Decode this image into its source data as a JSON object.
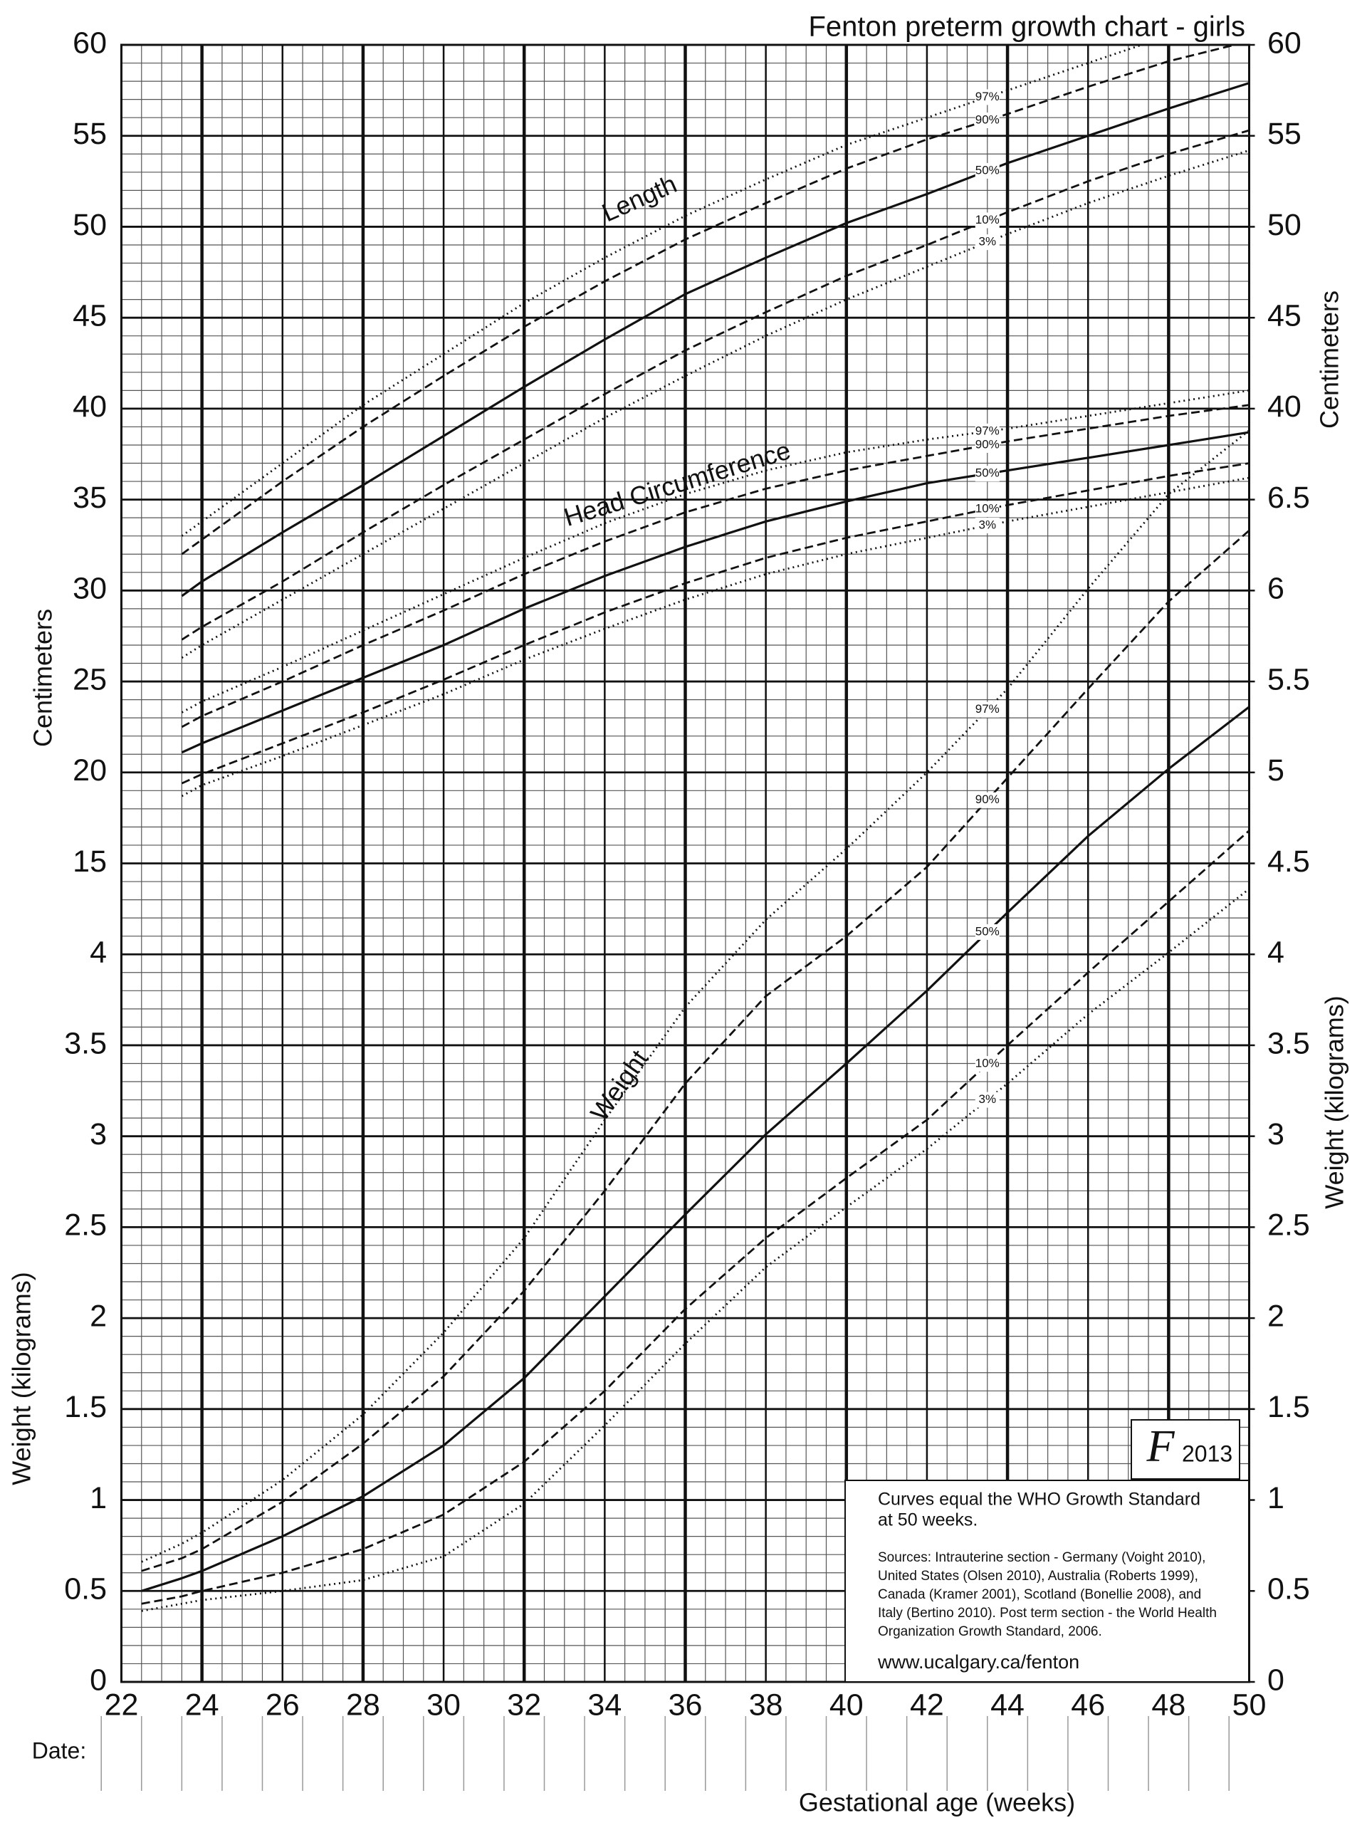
{
  "chart_data": {
    "type": "line",
    "title": "Fenton preterm growth chart - girls",
    "xlabel": "Gestational age (weeks)",
    "date_label": "Date:",
    "ylabel_cm": "Centimeters",
    "ylabel_kg": "Weight (kilograms)",
    "color": "#111111",
    "grid": true,
    "xlim": [
      22,
      50
    ],
    "xticks": [
      22,
      24,
      26,
      28,
      30,
      32,
      34,
      36,
      38,
      40,
      42,
      44,
      46,
      48,
      50
    ],
    "ylim": [
      -30,
      60
    ],
    "yticks": [
      15,
      20,
      25,
      30,
      35,
      40,
      45,
      50,
      55,
      60
    ],
    "yticks_right": [
      40,
      45,
      50,
      55,
      60
    ],
    "y2lim": [
      0,
      9
    ],
    "y2ticks_left": [
      0,
      0.5,
      1,
      1.5,
      2,
      2.5,
      3,
      3.5,
      4
    ],
    "y2ticks": [
      0,
      0.5,
      1,
      1.5,
      2,
      2.5,
      3,
      3.5,
      4,
      4.5,
      5,
      5.5,
      6,
      6.5
    ],
    "x": [
      22.5,
      23.5,
      24,
      26,
      28,
      30,
      32,
      34,
      36,
      38,
      40,
      42,
      44,
      46,
      48,
      50
    ],
    "groups": [
      {
        "label": "Length",
        "axis": "y",
        "series": [
          {
            "name": "97%",
            "style": "dotted",
            "values": [
              null,
              33.0,
              33.8,
              37.0,
              40.2,
              43.0,
              45.8,
              48.3,
              50.6,
              52.6,
              54.5,
              56.0,
              57.5,
              59.0,
              60.5,
              61.8
            ]
          },
          {
            "name": "90%",
            "style": "dashed",
            "values": [
              null,
              32.0,
              32.8,
              36.0,
              39.0,
              41.8,
              44.5,
              47.0,
              49.3,
              51.3,
              53.2,
              54.8,
              56.2,
              57.7,
              59.1,
              60.2
            ]
          },
          {
            "name": "50%",
            "style": "solid",
            "values": [
              null,
              29.7,
              30.5,
              33.2,
              35.8,
              38.5,
              41.2,
              43.8,
              46.3,
              48.3,
              50.2,
              51.8,
              53.5,
              55.0,
              56.5,
              57.9
            ]
          },
          {
            "name": "10%",
            "style": "dashed",
            "values": [
              null,
              27.3,
              28.0,
              30.5,
              33.2,
              35.8,
              38.3,
              40.8,
              43.2,
              45.3,
              47.3,
              49.0,
              50.8,
              52.5,
              54.0,
              55.3
            ]
          },
          {
            "name": "3%",
            "style": "dotted",
            "values": [
              null,
              26.3,
              27.0,
              29.5,
              32.0,
              34.5,
              37.0,
              39.5,
              41.8,
              44.0,
              46.0,
              47.8,
              49.6,
              51.3,
              52.8,
              54.2
            ]
          }
        ]
      },
      {
        "label": "Head Circumference",
        "axis": "y",
        "series": [
          {
            "name": "97%",
            "style": "dotted",
            "values": [
              null,
              23.3,
              23.9,
              25.8,
              27.8,
              29.8,
              31.8,
              33.7,
              35.3,
              36.6,
              37.6,
              38.3,
              38.9,
              39.6,
              40.3,
              41.0
            ]
          },
          {
            "name": "90%",
            "style": "dashed",
            "values": [
              null,
              22.5,
              23.1,
              25.0,
              27.0,
              28.9,
              30.9,
              32.7,
              34.3,
              35.6,
              36.6,
              37.4,
              38.2,
              38.9,
              39.6,
              40.2
            ]
          },
          {
            "name": "50%",
            "style": "solid",
            "values": [
              null,
              21.1,
              21.6,
              23.4,
              25.2,
              27.0,
              29.0,
              30.8,
              32.4,
              33.8,
              34.9,
              35.9,
              36.6,
              37.3,
              38.0,
              38.7
            ]
          },
          {
            "name": "10%",
            "style": "dashed",
            "values": [
              null,
              19.4,
              19.9,
              21.6,
              23.3,
              25.1,
              27.0,
              28.8,
              30.4,
              31.8,
              32.9,
              33.8,
              34.7,
              35.5,
              36.3,
              37.0
            ]
          },
          {
            "name": "3%",
            "style": "dotted",
            "values": [
              null,
              18.7,
              19.3,
              20.9,
              22.6,
              24.3,
              26.2,
              27.9,
              29.5,
              30.9,
              32.0,
              32.9,
              33.8,
              34.6,
              35.4,
              36.2
            ]
          }
        ]
      },
      {
        "label": "Weight",
        "axis": "y2",
        "series": [
          {
            "name": "97%",
            "style": "dotted",
            "values": [
              0.66,
              0.76,
              0.82,
              1.11,
              1.47,
              1.92,
              2.44,
              3.09,
              3.71,
              4.19,
              4.58,
              5.0,
              5.46,
              6.01,
              6.53,
              6.88
            ]
          },
          {
            "name": "90%",
            "style": "dashed",
            "values": [
              0.61,
              0.68,
              0.73,
              0.99,
              1.31,
              1.68,
              2.15,
              2.7,
              3.29,
              3.77,
              4.1,
              4.48,
              4.97,
              5.46,
              5.94,
              6.33
            ]
          },
          {
            "name": "50%",
            "style": "solid",
            "values": [
              0.5,
              0.57,
              0.61,
              0.8,
              1.02,
              1.3,
              1.67,
              2.12,
              2.57,
              3.01,
              3.4,
              3.8,
              4.23,
              4.65,
              5.02,
              5.36
            ]
          },
          {
            "name": "10%",
            "style": "dashed",
            "values": [
              0.43,
              0.47,
              0.5,
              0.6,
              0.73,
              0.92,
              1.21,
              1.6,
              2.05,
              2.44,
              2.77,
              3.09,
              3.5,
              3.9,
              4.29,
              4.68
            ]
          },
          {
            "name": "3%",
            "style": "dotted",
            "values": [
              0.39,
              0.43,
              0.45,
              0.5,
              0.56,
              0.69,
              0.98,
              1.41,
              1.86,
              2.28,
              2.61,
              2.93,
              3.29,
              3.67,
              4.01,
              4.36
            ]
          }
        ]
      }
    ],
    "logo": "F",
    "logo_year": "2013",
    "note": {
      "lines": [
        "Curves equal the WHO Growth Standard",
        "at 50 weeks."
      ],
      "sources": [
        "Sources: Intrauterine section - Germany (Voight 2010),",
        "United States (Olsen 2010), Australia (Roberts 1999),",
        "Canada (Kramer 2001), Scotland (Bonellie 2008), and",
        "Italy (Bertino 2010). Post term section - the World Health",
        "Organization Growth Standard, 2006."
      ],
      "url": "www.ucalgary.ca/fenton"
    }
  }
}
